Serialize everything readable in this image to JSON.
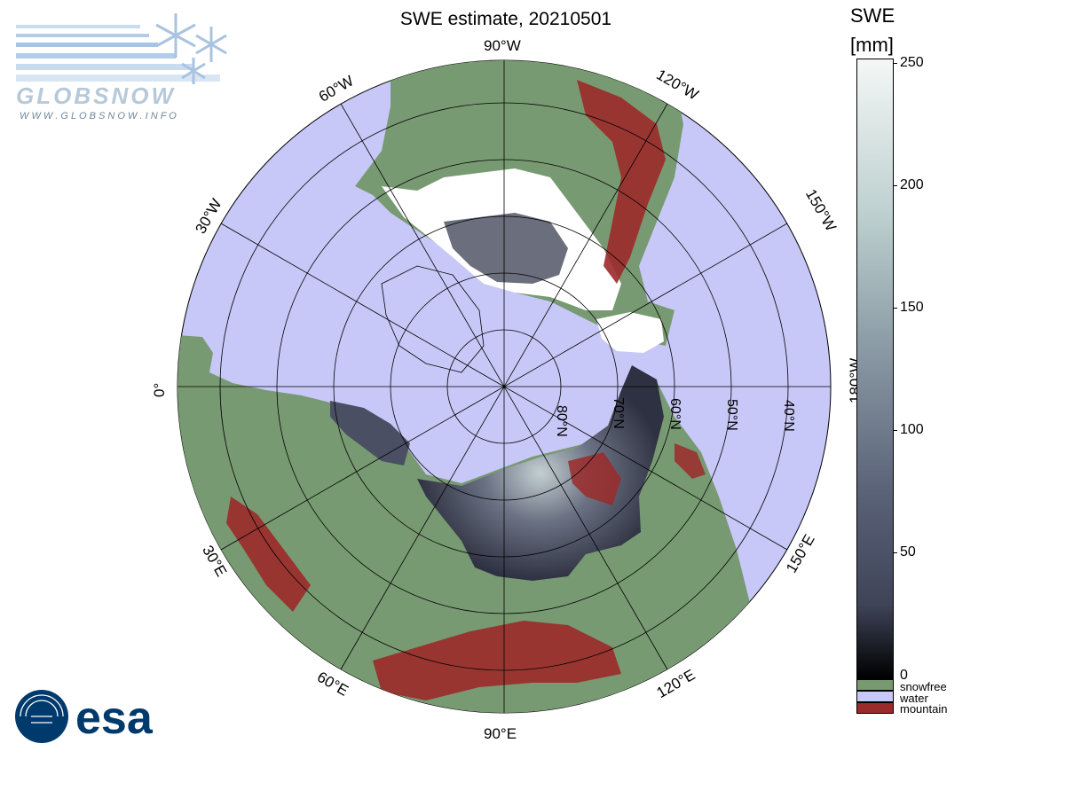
{
  "title": "SWE estimate, 20210501",
  "colorbar": {
    "title_line1": "SWE",
    "title_line2": "[mm]",
    "ticks": [
      "250",
      "200",
      "150",
      "100",
      "50",
      "0"
    ],
    "categories": [
      {
        "label": "snowfree",
        "color": "#789a72"
      },
      {
        "label": "water",
        "color": "#c8c8f8"
      },
      {
        "label": "mountain",
        "color": "#9b2a2a"
      }
    ]
  },
  "map": {
    "projection": "polar stereographic (north pole)",
    "colors": {
      "water": "#c8c8f8",
      "land": "#789a72",
      "mountain": "#9b2a2a",
      "snow_high": "#ffffff",
      "snow_low": "#3a3e52"
    },
    "lon_labels": [
      "90°W",
      "120°W",
      "150°W",
      "180°W",
      "150°E",
      "120°E",
      "90°E",
      "60°E",
      "30°E",
      "0°",
      "30°W",
      "60°W"
    ],
    "lat_labels": [
      "80°N",
      "70°N",
      "60°N",
      "50°N",
      "40°N"
    ]
  },
  "logos": {
    "globsnow_word": "GLOBSNOW",
    "globsnow_url": "W W W . G L O B S N O W . I N F O",
    "esa_word": "esa"
  }
}
